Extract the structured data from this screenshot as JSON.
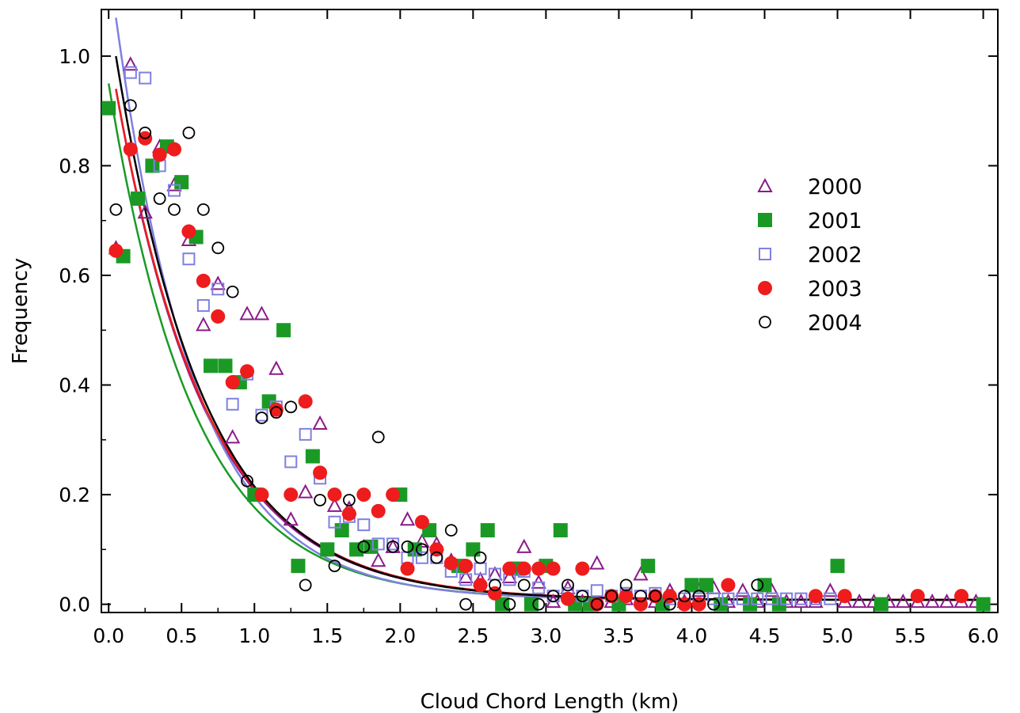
{
  "chart_data": {
    "type": "scatter",
    "title": "",
    "xlabel": "Cloud Chord Length  (km)",
    "ylabel": "Frequency",
    "xlim": [
      -0.05,
      6.1
    ],
    "ylim": [
      -0.015,
      1.085
    ],
    "xticks": [
      "0.0",
      "0.5",
      "1.0",
      "1.5",
      "2.0",
      "2.5",
      "3.0",
      "3.5",
      "4.0",
      "4.5",
      "5.0",
      "5.5",
      "6.0"
    ],
    "yticks": [
      "0.0",
      "0.2",
      "0.4",
      "0.6",
      "0.8",
      "1.0"
    ],
    "grid": false,
    "legend_position": "right",
    "series": [
      {
        "name": "2000",
        "marker": "triangle-open",
        "color": "#8b1a89",
        "fit": {
          "a": 0.94,
          "k": 1.62,
          "c": 0.008,
          "x0": 0.05
        },
        "points": [
          [
            0.05,
            0.65
          ],
          [
            0.15,
            0.985
          ],
          [
            0.25,
            0.715
          ],
          [
            0.35,
            0.835
          ],
          [
            0.45,
            0.765
          ],
          [
            0.55,
            0.665
          ],
          [
            0.65,
            0.51
          ],
          [
            0.75,
            0.585
          ],
          [
            0.85,
            0.305
          ],
          [
            0.95,
            0.53
          ],
          [
            1.05,
            0.53
          ],
          [
            1.15,
            0.43
          ],
          [
            1.25,
            0.155
          ],
          [
            1.35,
            0.205
          ],
          [
            1.45,
            0.33
          ],
          [
            1.55,
            0.18
          ],
          [
            1.65,
            0.175
          ],
          [
            1.75,
            0.105
          ],
          [
            1.85,
            0.08
          ],
          [
            1.95,
            0.105
          ],
          [
            2.05,
            0.155
          ],
          [
            2.15,
            0.115
          ],
          [
            2.25,
            0.11
          ],
          [
            2.35,
            0.08
          ],
          [
            2.45,
            0.05
          ],
          [
            2.55,
            0.045
          ],
          [
            2.65,
            0.055
          ],
          [
            2.75,
            0.05
          ],
          [
            2.85,
            0.105
          ],
          [
            2.95,
            0.04
          ],
          [
            3.05,
            0.005
          ],
          [
            3.15,
            0.03
          ],
          [
            3.25,
            0.005
          ],
          [
            3.35,
            0.075
          ],
          [
            3.45,
            0.005
          ],
          [
            3.55,
            0.01
          ],
          [
            3.65,
            0.055
          ],
          [
            3.75,
            0.005
          ],
          [
            3.85,
            0.025
          ],
          [
            3.95,
            0.005
          ],
          [
            4.05,
            0.025
          ],
          [
            4.15,
            0.03
          ],
          [
            4.25,
            0.005
          ],
          [
            4.35,
            0.025
          ],
          [
            4.45,
            0.005
          ],
          [
            4.55,
            0.025
          ],
          [
            4.65,
            0.005
          ],
          [
            4.75,
            0.005
          ],
          [
            4.85,
            0.005
          ],
          [
            4.95,
            0.025
          ],
          [
            5.05,
            0.005
          ],
          [
            5.15,
            0.005
          ],
          [
            5.25,
            0.005
          ],
          [
            5.35,
            0.005
          ],
          [
            5.45,
            0.005
          ],
          [
            5.55,
            0.005
          ],
          [
            5.65,
            0.005
          ],
          [
            5.75,
            0.005
          ],
          [
            5.85,
            0.005
          ],
          [
            5.95,
            0.005
          ]
        ]
      },
      {
        "name": "2001",
        "marker": "square-filled",
        "color": "#1a9a25",
        "fit": {
          "a": 0.95,
          "k": 1.72,
          "c": 0.008,
          "x0": 0.0
        },
        "points": [
          [
            0.0,
            0.905
          ],
          [
            0.1,
            0.635
          ],
          [
            0.2,
            0.74
          ],
          [
            0.3,
            0.8
          ],
          [
            0.4,
            0.835
          ],
          [
            0.5,
            0.77
          ],
          [
            0.6,
            0.67
          ],
          [
            0.7,
            0.435
          ],
          [
            0.8,
            0.435
          ],
          [
            0.9,
            0.405
          ],
          [
            1.0,
            0.2
          ],
          [
            1.1,
            0.37
          ],
          [
            1.2,
            0.5
          ],
          [
            1.3,
            0.07
          ],
          [
            1.4,
            0.27
          ],
          [
            1.5,
            0.1
          ],
          [
            1.6,
            0.135
          ],
          [
            1.7,
            0.1
          ],
          [
            1.8,
            0.105
          ],
          [
            2.0,
            0.2
          ],
          [
            2.1,
            0.1
          ],
          [
            2.2,
            0.135
          ],
          [
            2.4,
            0.07
          ],
          [
            2.5,
            0.1
          ],
          [
            2.6,
            0.135
          ],
          [
            2.7,
            0.0
          ],
          [
            2.8,
            0.065
          ],
          [
            2.9,
            0.0
          ],
          [
            3.0,
            0.07
          ],
          [
            3.1,
            0.135
          ],
          [
            3.2,
            0.0
          ],
          [
            3.3,
            0.0
          ],
          [
            3.5,
            0.0
          ],
          [
            3.7,
            0.07
          ],
          [
            3.8,
            0.0
          ],
          [
            4.0,
            0.035
          ],
          [
            4.1,
            0.035
          ],
          [
            4.2,
            0.0
          ],
          [
            4.4,
            0.0
          ],
          [
            4.5,
            0.035
          ],
          [
            4.6,
            0.0
          ],
          [
            5.0,
            0.07
          ],
          [
            5.3,
            0.0
          ],
          [
            6.0,
            0.0
          ]
        ]
      },
      {
        "name": "2002",
        "marker": "square-open",
        "color": "#7f80e0",
        "fit": {
          "a": 1.07,
          "k": 1.82,
          "c": 0.008,
          "x0": 0.05
        },
        "points": [
          [
            0.15,
            0.97
          ],
          [
            0.25,
            0.96
          ],
          [
            0.35,
            0.8
          ],
          [
            0.45,
            0.755
          ],
          [
            0.55,
            0.63
          ],
          [
            0.65,
            0.545
          ],
          [
            0.75,
            0.575
          ],
          [
            0.85,
            0.365
          ],
          [
            0.95,
            0.42
          ],
          [
            1.05,
            0.345
          ],
          [
            1.15,
            0.36
          ],
          [
            1.25,
            0.26
          ],
          [
            1.35,
            0.31
          ],
          [
            1.45,
            0.23
          ],
          [
            1.55,
            0.15
          ],
          [
            1.65,
            0.16
          ],
          [
            1.75,
            0.145
          ],
          [
            1.85,
            0.11
          ],
          [
            1.95,
            0.11
          ],
          [
            2.05,
            0.085
          ],
          [
            2.15,
            0.085
          ],
          [
            2.25,
            0.085
          ],
          [
            2.35,
            0.06
          ],
          [
            2.45,
            0.045
          ],
          [
            2.55,
            0.065
          ],
          [
            2.65,
            0.055
          ],
          [
            2.75,
            0.045
          ],
          [
            2.85,
            0.06
          ],
          [
            2.95,
            0.03
          ],
          [
            3.05,
            0.015
          ],
          [
            3.15,
            0.02
          ],
          [
            3.25,
            0.015
          ],
          [
            3.35,
            0.025
          ],
          [
            3.45,
            0.015
          ],
          [
            3.55,
            0.02
          ],
          [
            3.65,
            0.015
          ],
          [
            3.75,
            0.02
          ],
          [
            3.85,
            0.01
          ],
          [
            3.95,
            0.01
          ],
          [
            4.05,
            0.01
          ],
          [
            4.15,
            0.01
          ],
          [
            4.25,
            0.01
          ],
          [
            4.35,
            0.01
          ],
          [
            4.45,
            0.01
          ],
          [
            4.55,
            0.01
          ],
          [
            4.65,
            0.01
          ],
          [
            4.75,
            0.01
          ],
          [
            4.85,
            0.01
          ],
          [
            4.95,
            0.01
          ]
        ]
      },
      {
        "name": "2003",
        "marker": "circle-filled",
        "color": "#ee1c1c",
        "fit": {
          "a": 0.94,
          "k": 1.6,
          "c": 0.008,
          "x0": 0.05
        },
        "points": [
          [
            0.05,
            0.645
          ],
          [
            0.15,
            0.83
          ],
          [
            0.25,
            0.85
          ],
          [
            0.35,
            0.82
          ],
          [
            0.45,
            0.83
          ],
          [
            0.55,
            0.68
          ],
          [
            0.65,
            0.59
          ],
          [
            0.75,
            0.525
          ],
          [
            0.85,
            0.405
          ],
          [
            0.95,
            0.425
          ],
          [
            1.05,
            0.2
          ],
          [
            1.15,
            0.355
          ],
          [
            1.25,
            0.2
          ],
          [
            1.35,
            0.37
          ],
          [
            1.45,
            0.24
          ],
          [
            1.55,
            0.2
          ],
          [
            1.65,
            0.165
          ],
          [
            1.75,
            0.2
          ],
          [
            1.85,
            0.17
          ],
          [
            1.95,
            0.2
          ],
          [
            2.05,
            0.065
          ],
          [
            2.15,
            0.15
          ],
          [
            2.25,
            0.1
          ],
          [
            2.35,
            0.075
          ],
          [
            2.45,
            0.07
          ],
          [
            2.55,
            0.035
          ],
          [
            2.65,
            0.02
          ],
          [
            2.75,
            0.065
          ],
          [
            2.85,
            0.065
          ],
          [
            2.95,
            0.065
          ],
          [
            3.05,
            0.065
          ],
          [
            3.15,
            0.01
          ],
          [
            3.25,
            0.065
          ],
          [
            3.35,
            0.0
          ],
          [
            3.45,
            0.015
          ],
          [
            3.55,
            0.015
          ],
          [
            3.65,
            0.0
          ],
          [
            3.75,
            0.015
          ],
          [
            3.85,
            0.015
          ],
          [
            3.95,
            0.0
          ],
          [
            4.05,
            0.0
          ],
          [
            4.25,
            0.035
          ],
          [
            4.85,
            0.015
          ],
          [
            5.05,
            0.015
          ],
          [
            5.55,
            0.015
          ],
          [
            5.85,
            0.015
          ]
        ]
      },
      {
        "name": "2004",
        "marker": "circle-open",
        "color": "#000000",
        "fit": {
          "a": 1.0,
          "k": 1.65,
          "c": 0.008,
          "x0": 0.05
        },
        "points": [
          [
            0.05,
            0.72
          ],
          [
            0.15,
            0.91
          ],
          [
            0.25,
            0.86
          ],
          [
            0.35,
            0.74
          ],
          [
            0.45,
            0.72
          ],
          [
            0.55,
            0.86
          ],
          [
            0.65,
            0.72
          ],
          [
            0.75,
            0.65
          ],
          [
            0.85,
            0.57
          ],
          [
            0.95,
            0.225
          ],
          [
            1.05,
            0.34
          ],
          [
            1.15,
            0.35
          ],
          [
            1.25,
            0.36
          ],
          [
            1.35,
            0.035
          ],
          [
            1.45,
            0.19
          ],
          [
            1.55,
            0.07
          ],
          [
            1.65,
            0.19
          ],
          [
            1.75,
            0.105
          ],
          [
            1.85,
            0.305
          ],
          [
            1.95,
            0.105
          ],
          [
            2.05,
            0.105
          ],
          [
            2.15,
            0.1
          ],
          [
            2.25,
            0.085
          ],
          [
            2.35,
            0.135
          ],
          [
            2.45,
            0.0
          ],
          [
            2.55,
            0.085
          ],
          [
            2.65,
            0.035
          ],
          [
            2.75,
            0.0
          ],
          [
            2.85,
            0.035
          ],
          [
            2.95,
            0.0
          ],
          [
            3.05,
            0.015
          ],
          [
            3.15,
            0.035
          ],
          [
            3.25,
            0.015
          ],
          [
            3.35,
            0.0
          ],
          [
            3.45,
            0.015
          ],
          [
            3.55,
            0.035
          ],
          [
            3.65,
            0.015
          ],
          [
            3.75,
            0.015
          ],
          [
            3.85,
            0.0
          ],
          [
            3.95,
            0.015
          ],
          [
            4.05,
            0.015
          ],
          [
            4.15,
            0.0
          ],
          [
            4.45,
            0.035
          ]
        ]
      }
    ]
  }
}
